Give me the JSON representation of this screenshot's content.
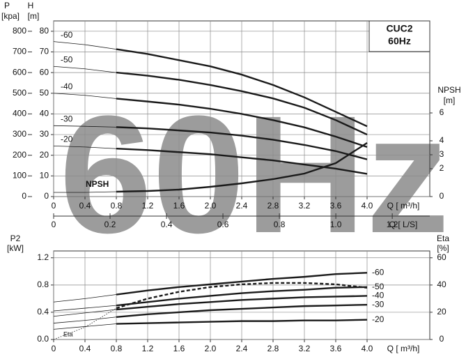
{
  "chart_data": [
    {
      "type": "line",
      "watermark": "60Hz",
      "legend_box": [
        "CUC2",
        "60Hz"
      ],
      "y3label": [
        "P",
        "[kpa]"
      ],
      "ylabel": [
        "H",
        "[m]"
      ],
      "y2label": [
        "NPSH",
        "[m]"
      ],
      "xlabel": "Q [ m³/h]",
      "x2label": "Q [ L/S]",
      "color": "#1a1a1a",
      "grid": true,
      "x": [
        0,
        0.4,
        0.8,
        1.2,
        1.6,
        2.0,
        2.4,
        2.8,
        3.2,
        3.6,
        4.0
      ],
      "xlim": [
        0,
        4.8
      ],
      "xticks": [
        0,
        0.4,
        0.8,
        1.2,
        1.6,
        {
          "value": 2,
          "label": "2.0"
        },
        2.4,
        2.8,
        3.2,
        3.6,
        {
          "value": 4,
          "label": "4.0"
        }
      ],
      "x2lim": [
        0,
        1.333
      ],
      "x2ticks": [
        0,
        0.2,
        0.4,
        0.6,
        0.8,
        {
          "value": 1,
          "label": "1.0"
        },
        1.2
      ],
      "ylim": [
        0,
        85
      ],
      "yticks": [
        0,
        10,
        20,
        30,
        40,
        50,
        60,
        70,
        80
      ],
      "y3lim": [
        0,
        850
      ],
      "y3ticks": [
        0,
        100,
        200,
        300,
        400,
        500,
        600,
        700,
        800
      ],
      "y2lim": [
        0,
        12.6
      ],
      "y2ticks": [
        0,
        2,
        3,
        4,
        6
      ],
      "series": [
        {
          "name": "-60",
          "values": [
            75,
            73.5,
            71.3,
            69,
            66,
            63,
            59,
            54,
            48,
            41,
            34
          ]
        },
        {
          "name": "-50",
          "values": [
            63,
            61.8,
            60,
            58.5,
            56.5,
            54,
            51,
            47.5,
            43,
            37,
            30
          ]
        },
        {
          "name": "-40",
          "values": [
            50,
            49,
            47.4,
            46,
            44.5,
            42.5,
            40,
            37,
            33.5,
            29,
            24
          ]
        },
        {
          "name": "-30",
          "values": [
            34.3,
            34,
            33.6,
            33,
            32,
            31,
            29.5,
            27.5,
            25,
            22,
            18
          ]
        },
        {
          "name": "-20",
          "values": [
            24.5,
            24,
            23.2,
            22.5,
            21.5,
            20.5,
            19,
            17.5,
            15.5,
            13.5,
            11
          ]
        },
        {
          "name": "NPSH",
          "axis": "y2",
          "values": [
            0.3,
            0.3,
            0.35,
            0.4,
            0.5,
            0.7,
            0.95,
            1.25,
            1.65,
            2.4,
            3.85
          ]
        }
      ]
    },
    {
      "type": "line",
      "ylabel": [
        "P2",
        "[kW]"
      ],
      "y2label": [
        "Eta",
        "[%]"
      ],
      "xlabel": "Q [ m³/h]",
      "color": "#1a1a1a",
      "grid": true,
      "x": [
        0,
        0.4,
        0.8,
        1.2,
        1.6,
        2.0,
        2.4,
        2.8,
        3.2,
        3.6,
        4.0
      ],
      "xlim": [
        0,
        4.8
      ],
      "xticks": [
        0,
        0.4,
        0.8,
        1.2,
        1.6,
        {
          "value": 2,
          "label": "2.0"
        },
        2.4,
        2.8,
        3.2,
        3.6,
        {
          "value": 4,
          "label": "4.0"
        }
      ],
      "ylim": [
        0,
        1.3
      ],
      "yticks": [
        {
          "value": 0,
          "label": "0.0"
        },
        0.4,
        0.8,
        1.2
      ],
      "y2lim": [
        0,
        65
      ],
      "y2ticks": [
        0,
        20,
        40,
        60
      ],
      "series": [
        {
          "name": "-60",
          "values": [
            0.55,
            0.6,
            0.66,
            0.72,
            0.77,
            0.81,
            0.85,
            0.89,
            0.92,
            0.96,
            0.98
          ]
        },
        {
          "name": "-50",
          "values": [
            0.42,
            0.46,
            0.5,
            0.55,
            0.6,
            0.64,
            0.68,
            0.71,
            0.73,
            0.76,
            0.77
          ]
        },
        {
          "name": "-40",
          "values": [
            0.34,
            0.39,
            0.44,
            0.48,
            0.52,
            0.55,
            0.58,
            0.6,
            0.62,
            0.63,
            0.64
          ]
        },
        {
          "name": "-30",
          "values": [
            0.24,
            0.28,
            0.33,
            0.37,
            0.4,
            0.43,
            0.45,
            0.47,
            0.49,
            0.5,
            0.51
          ]
        },
        {
          "name": "-20",
          "values": [
            0.15,
            0.19,
            0.23,
            0.24,
            0.25,
            0.26,
            0.27,
            0.27,
            0.28,
            0.28,
            0.29
          ]
        },
        {
          "name": "Eta",
          "axis": "y2",
          "dashed": true,
          "values": [
            0,
            9,
            23,
            30,
            35,
            38.5,
            40.5,
            41.5,
            41.5,
            40.5,
            38
          ]
        }
      ]
    }
  ]
}
